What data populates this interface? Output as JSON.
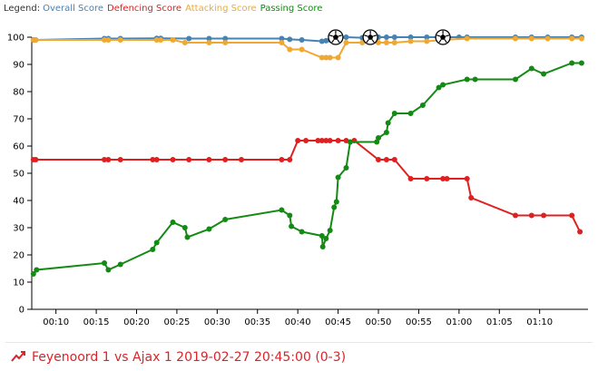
{
  "legend": {
    "label": "Legend:",
    "items": [
      {
        "name": "Overall Score",
        "color": "#4682b4"
      },
      {
        "name": "Defencing Score",
        "color": "#e02020"
      },
      {
        "name": "Attacking Score",
        "color": "#f0a830"
      },
      {
        "name": "Passing Score",
        "color": "#138a13"
      }
    ]
  },
  "footer": {
    "title": "Feyenoord 1 vs Ajax 1 2019-02-27 20:45:00 (0-3)",
    "color": "#d9252a",
    "icon": "trend-chart-icon"
  },
  "chart_data": {
    "type": "line",
    "xlabel": "",
    "ylabel": "",
    "xlim": [
      7,
      76
    ],
    "ylim": [
      0,
      100
    ],
    "y_ticks": [
      0,
      10,
      20,
      30,
      40,
      50,
      60,
      70,
      80,
      90,
      100
    ],
    "x_ticks": [
      {
        "v": 10,
        "label": "00:10"
      },
      {
        "v": 15,
        "label": "00:15"
      },
      {
        "v": 20,
        "label": "00:20"
      },
      {
        "v": 25,
        "label": "00:25"
      },
      {
        "v": 30,
        "label": "00:30"
      },
      {
        "v": 35,
        "label": "00:35"
      },
      {
        "v": 40,
        "label": "00:40"
      },
      {
        "v": 45,
        "label": "00:45"
      },
      {
        "v": 50,
        "label": "00:50"
      },
      {
        "v": 55,
        "label": "00:55"
      },
      {
        "v": 60,
        "label": "01:00"
      },
      {
        "v": 65,
        "label": "01:05"
      },
      {
        "v": 70,
        "label": "01:10"
      }
    ],
    "grid": false,
    "legend_position": "top-left",
    "goal_markers": [
      {
        "x": 44.7,
        "icon": "soccer-ball-icon"
      },
      {
        "x": 49,
        "icon": "soccer-ball-icon"
      },
      {
        "x": 58,
        "icon": "soccer-ball-icon"
      }
    ],
    "series": [
      {
        "name": "Overall Score",
        "color": "#4682b4",
        "points": [
          [
            7.2,
            99
          ],
          [
            7.5,
            99
          ],
          [
            16,
            99.5
          ],
          [
            16.5,
            99.5
          ],
          [
            18,
            99.5
          ],
          [
            22.5,
            99.6
          ],
          [
            23,
            99.6
          ],
          [
            26.5,
            99.5
          ],
          [
            29,
            99.5
          ],
          [
            31,
            99.5
          ],
          [
            38,
            99.5
          ],
          [
            39,
            99.2
          ],
          [
            40.5,
            99
          ],
          [
            43,
            98.5
          ],
          [
            43.5,
            98.7
          ],
          [
            44,
            99
          ],
          [
            46,
            100
          ],
          [
            48,
            99.8
          ],
          [
            50,
            100
          ],
          [
            51,
            100
          ],
          [
            52,
            100
          ],
          [
            54,
            100
          ],
          [
            56,
            100
          ],
          [
            58,
            100
          ],
          [
            60,
            100
          ],
          [
            61,
            100
          ],
          [
            67,
            100
          ],
          [
            69,
            100
          ],
          [
            71,
            100
          ],
          [
            74,
            100
          ],
          [
            75.2,
            100
          ]
        ]
      },
      {
        "name": "Defencing Score",
        "color": "#e02020",
        "points": [
          [
            7.2,
            55
          ],
          [
            7.5,
            55
          ],
          [
            16,
            55
          ],
          [
            16.5,
            55
          ],
          [
            18,
            55
          ],
          [
            22,
            55
          ],
          [
            22.5,
            55
          ],
          [
            24.5,
            55
          ],
          [
            26.5,
            55
          ],
          [
            29,
            55
          ],
          [
            31,
            55
          ],
          [
            33,
            55
          ],
          [
            38,
            55
          ],
          [
            39,
            55
          ],
          [
            40,
            62
          ],
          [
            41,
            62
          ],
          [
            42.5,
            62
          ],
          [
            43,
            62
          ],
          [
            43.5,
            62
          ],
          [
            44,
            62
          ],
          [
            45,
            62
          ],
          [
            46,
            62
          ],
          [
            47,
            62
          ],
          [
            50,
            55
          ],
          [
            51,
            55
          ],
          [
            52,
            55
          ],
          [
            54,
            48
          ],
          [
            56,
            48
          ],
          [
            58,
            48
          ],
          [
            58.5,
            48
          ],
          [
            61,
            48
          ],
          [
            61.5,
            41
          ],
          [
            67,
            34.5
          ],
          [
            69,
            34.5
          ],
          [
            70.5,
            34.5
          ],
          [
            74,
            34.5
          ],
          [
            75,
            28.5
          ]
        ]
      },
      {
        "name": "Attacking Score",
        "color": "#f0a830",
        "points": [
          [
            7.2,
            99
          ],
          [
            7.5,
            99
          ],
          [
            16,
            99
          ],
          [
            16.5,
            99
          ],
          [
            18,
            99
          ],
          [
            22.5,
            99
          ],
          [
            23,
            99
          ],
          [
            24.5,
            99
          ],
          [
            26,
            98
          ],
          [
            29,
            98
          ],
          [
            31,
            98
          ],
          [
            38,
            98
          ],
          [
            39,
            95.5
          ],
          [
            40.5,
            95.5
          ],
          [
            43,
            92.5
          ],
          [
            43.5,
            92.5
          ],
          [
            44,
            92.5
          ],
          [
            45,
            92.5
          ],
          [
            46,
            98
          ],
          [
            48,
            98
          ],
          [
            50,
            98
          ],
          [
            51,
            98
          ],
          [
            52,
            98
          ],
          [
            54,
            98.5
          ],
          [
            56,
            98.5
          ],
          [
            58,
            99
          ],
          [
            61,
            99.5
          ],
          [
            67,
            99.5
          ],
          [
            69,
            99.5
          ],
          [
            71,
            99.5
          ],
          [
            74,
            99.5
          ],
          [
            75.2,
            99.5
          ]
        ]
      },
      {
        "name": "Passing Score",
        "color": "#138a13",
        "points": [
          [
            7.2,
            13
          ],
          [
            7.6,
            14.5
          ],
          [
            16,
            17
          ],
          [
            16.5,
            14.5
          ],
          [
            18,
            16.5
          ],
          [
            22,
            22
          ],
          [
            22.5,
            24.5
          ],
          [
            24.5,
            32
          ],
          [
            26,
            30
          ],
          [
            26.3,
            26.5
          ],
          [
            29,
            29.5
          ],
          [
            31,
            33
          ],
          [
            38,
            36.5
          ],
          [
            39,
            34.5
          ],
          [
            39.2,
            30.5
          ],
          [
            40.5,
            28.5
          ],
          [
            43,
            27
          ],
          [
            43.1,
            23
          ],
          [
            43.5,
            26
          ],
          [
            44,
            29
          ],
          [
            44.5,
            37.5
          ],
          [
            44.8,
            39.5
          ],
          [
            45,
            48.5
          ],
          [
            46,
            52
          ],
          [
            46.5,
            61.5
          ],
          [
            49.8,
            61.5
          ],
          [
            50,
            63
          ],
          [
            51,
            65
          ],
          [
            51.2,
            68.5
          ],
          [
            52,
            72
          ],
          [
            54,
            72
          ],
          [
            55.5,
            75
          ],
          [
            57.5,
            81.5
          ],
          [
            58,
            82.5
          ],
          [
            61,
            84.5
          ],
          [
            62,
            84.5
          ],
          [
            67,
            84.5
          ],
          [
            69,
            88.5
          ],
          [
            70.5,
            86.5
          ],
          [
            74,
            90.5
          ],
          [
            75.2,
            90.5
          ]
        ]
      }
    ]
  }
}
